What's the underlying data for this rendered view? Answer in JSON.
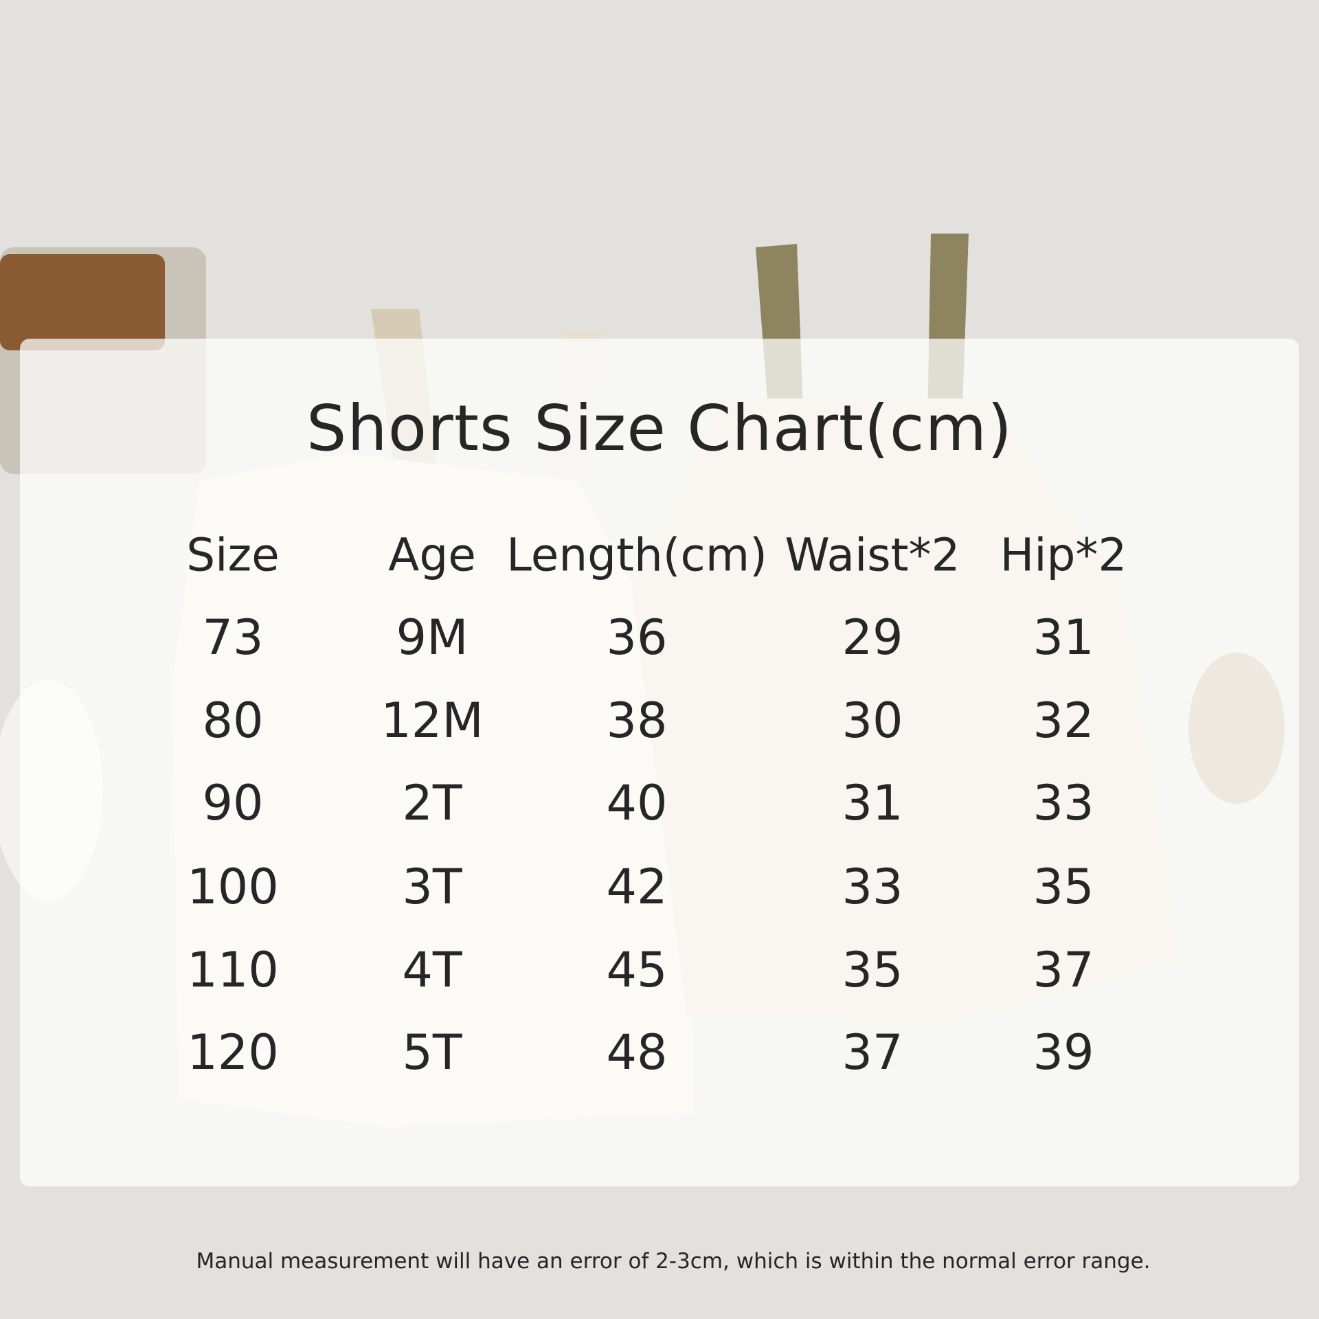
{
  "title": "Shorts Size Chart(cm)",
  "table": {
    "headers": [
      "Size",
      "Age",
      "Length(cm)",
      "Waist*2",
      "Hip*2"
    ],
    "rows": [
      [
        "73",
        "9M",
        "36",
        "29",
        "31"
      ],
      [
        "80",
        "12M",
        "38",
        "30",
        "32"
      ],
      [
        "90",
        "2T",
        "40",
        "31",
        "33"
      ],
      [
        "100",
        "3T",
        "42",
        "33",
        "35"
      ],
      [
        "110",
        "4T",
        "45",
        "35",
        "37"
      ],
      [
        "120",
        "5T",
        "48",
        "37",
        "39"
      ]
    ]
  },
  "footer": "Manual measurement will have an error of 2-3cm, which is within the normal error range.",
  "colors": {
    "background": "#e3e1de",
    "text": "#262626",
    "overall_cream": "#efe9dc",
    "strap_khaki": "#8f8460"
  }
}
